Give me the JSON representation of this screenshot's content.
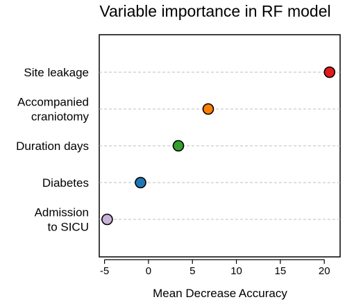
{
  "chart_data": {
    "type": "scatter",
    "title": "Variable importance in RF model",
    "xlabel": "Mean Decrease Accuracy",
    "ylabel": "",
    "xlim": [
      -5.6,
      21.8
    ],
    "xticks": [
      -5,
      0,
      5,
      10,
      15,
      20
    ],
    "xtick_labels": [
      "-5",
      "0",
      "5",
      "10",
      "15",
      "20"
    ],
    "grid": "dashed horizontal guide line per category",
    "categories": [
      [
        "Site leakage"
      ],
      [
        "Accompanied",
        "craniotomy"
      ],
      [
        "Duration days"
      ],
      [
        "Diabetes"
      ],
      [
        "Admission",
        "to SICU"
      ]
    ],
    "values": [
      20.6,
      6.8,
      3.4,
      -0.9,
      -4.7
    ],
    "colors": [
      "#e41a1c",
      "#ff7f00",
      "#33a02c",
      "#1f78b4",
      "#cab2d6"
    ]
  }
}
